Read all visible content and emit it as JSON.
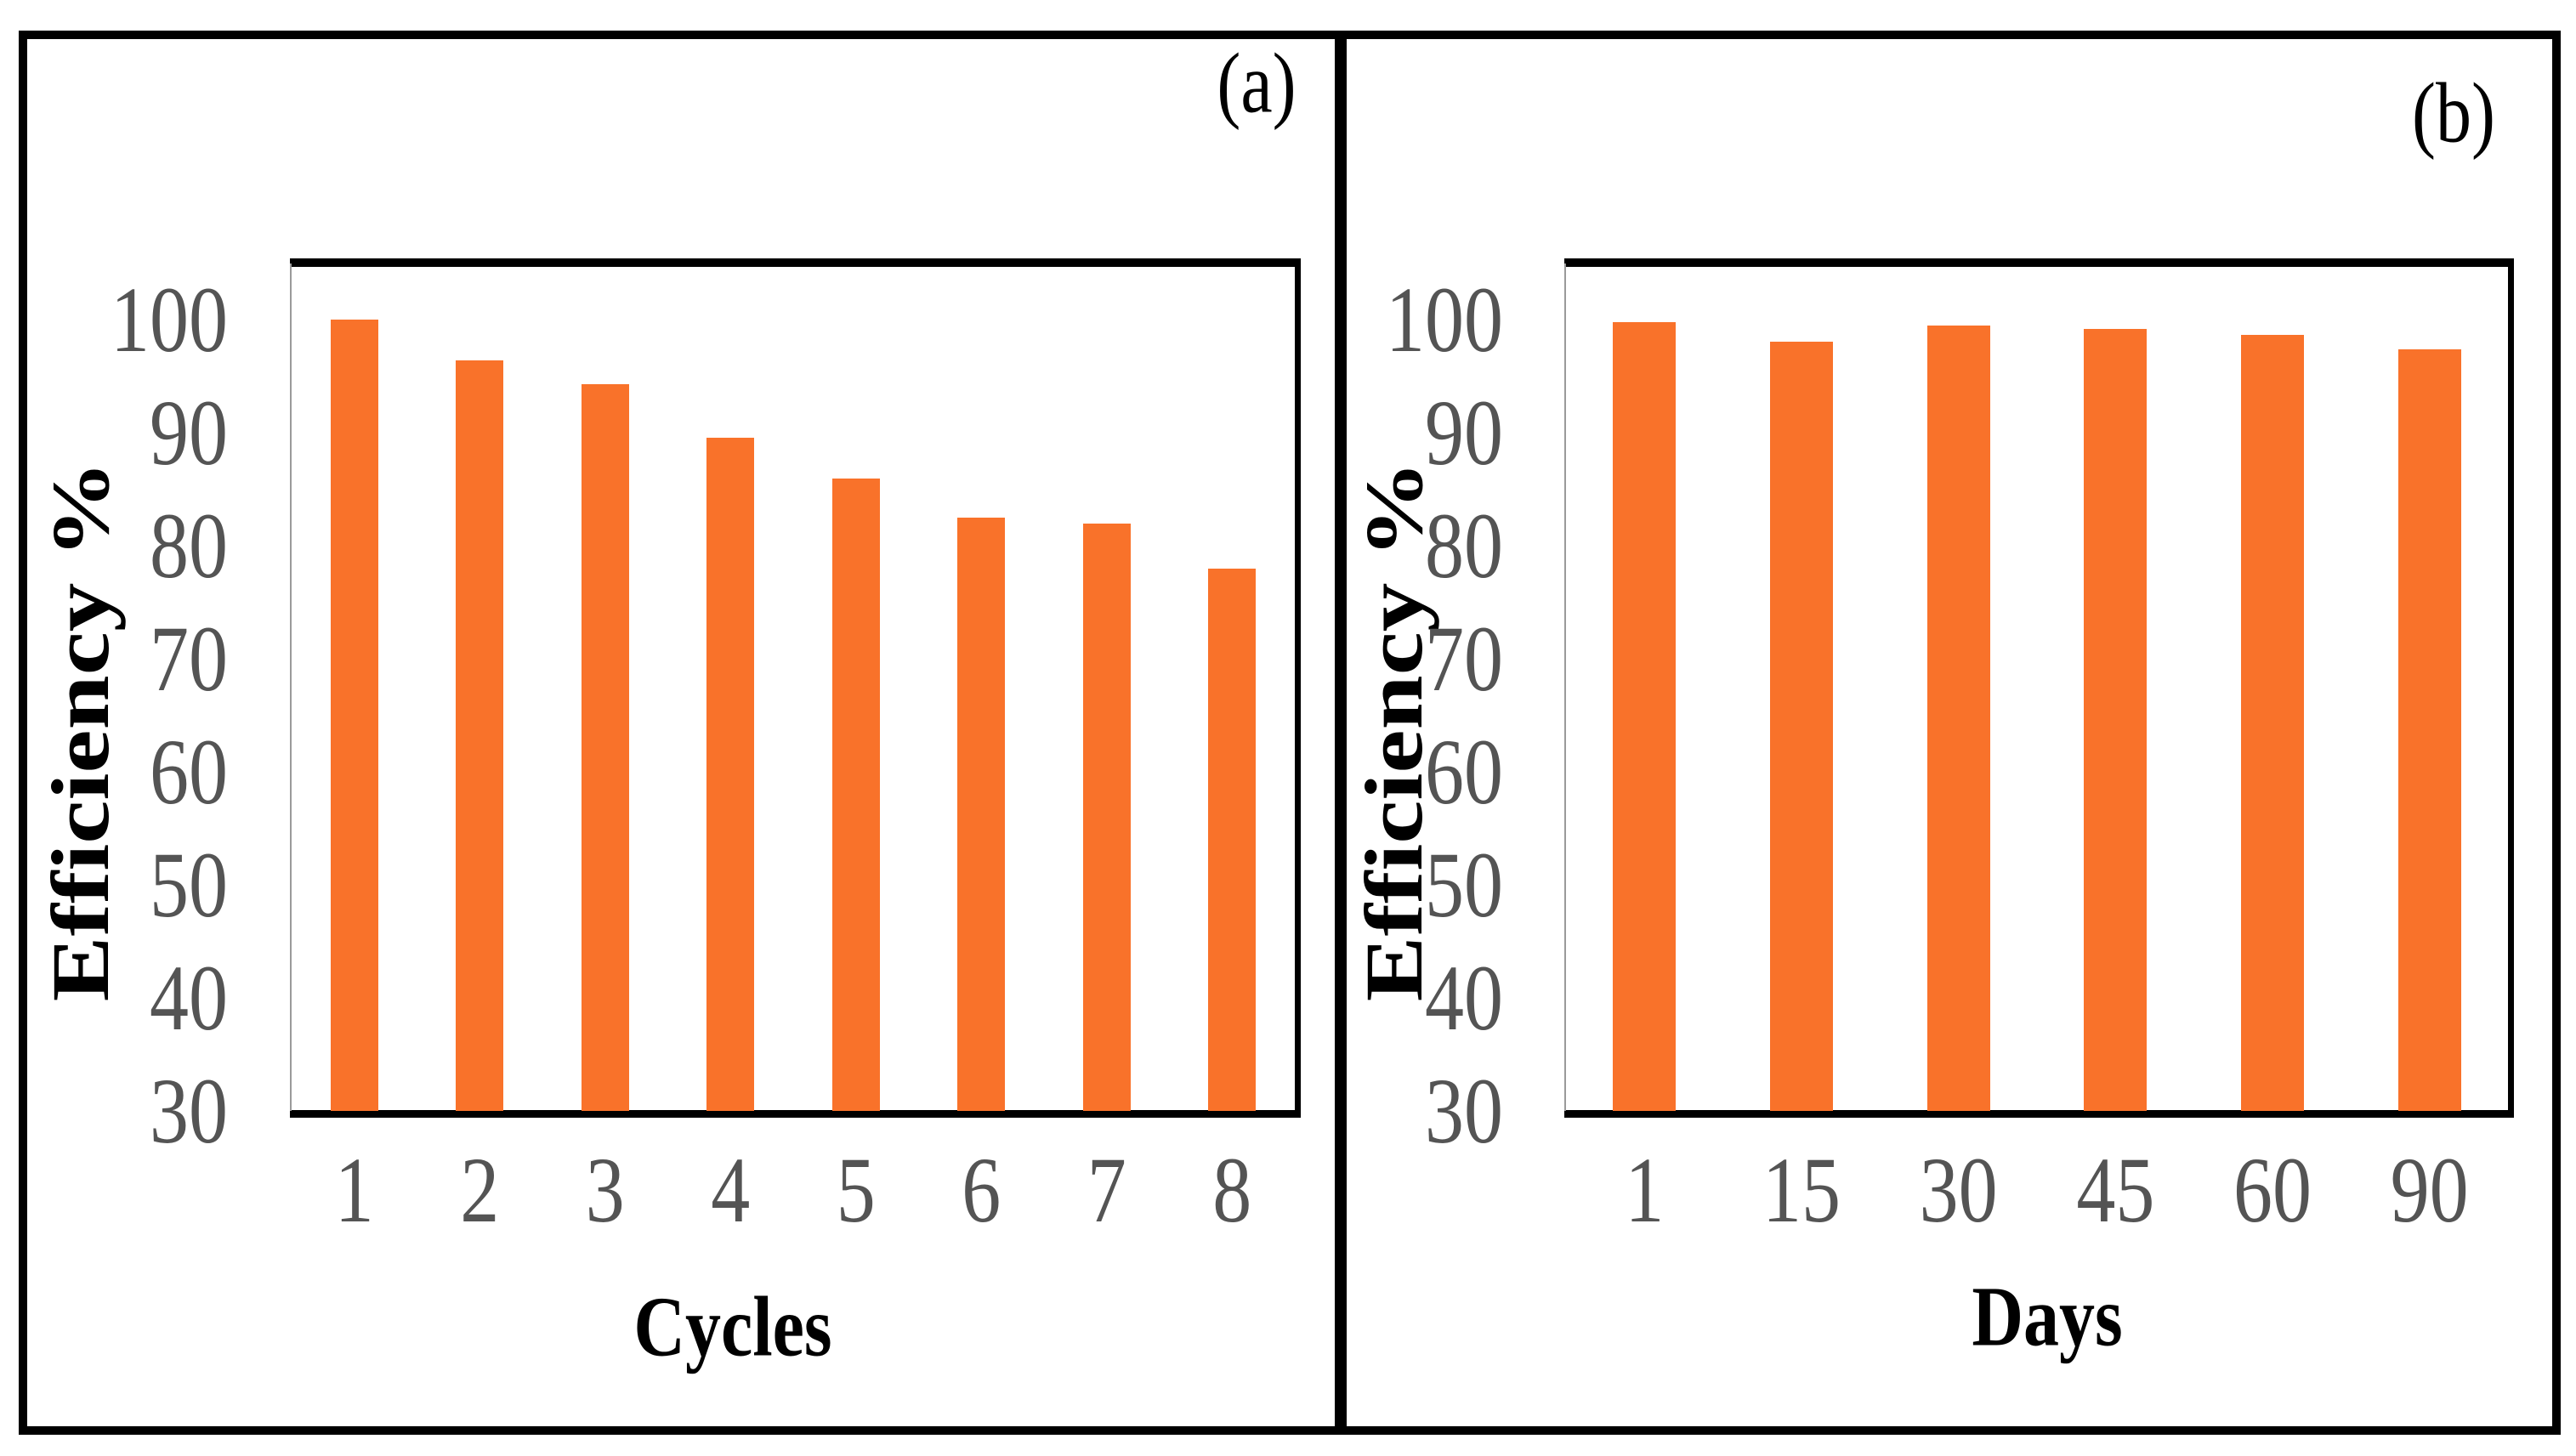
{
  "figure_type": "two-panel bar chart figure",
  "chart_data": [
    {
      "type": "bar",
      "panel_label": "(a)",
      "title": "",
      "categories": [
        "1",
        "2",
        "3",
        "4",
        "5",
        "6",
        "7",
        "8"
      ],
      "values": [
        100,
        96.4,
        94.3,
        89.6,
        86,
        82.5,
        82,
        78
      ],
      "xlabel": "Cycles",
      "ylabel": "Efficiency %",
      "ylim": [
        30,
        105
      ],
      "yticks": [
        30,
        40,
        50,
        60,
        70,
        80,
        90,
        100
      ],
      "grid": false,
      "legend": "none",
      "bar_color": "#F9722A",
      "tick_label_color": "#545454"
    },
    {
      "type": "bar",
      "panel_label": "(b)",
      "title": "",
      "categories": [
        "1",
        "15",
        "30",
        "45",
        "60",
        "90"
      ],
      "values": [
        99.8,
        98.1,
        99.5,
        99.2,
        98.7,
        97.4
      ],
      "xlabel": "Days",
      "ylabel": "Efficiency %",
      "ylim": [
        30,
        105
      ],
      "yticks": [
        30,
        40,
        50,
        60,
        70,
        80,
        90,
        100
      ],
      "grid": false,
      "legend": "none",
      "bar_color": "#F9722A",
      "tick_label_color": "#545454"
    }
  ]
}
